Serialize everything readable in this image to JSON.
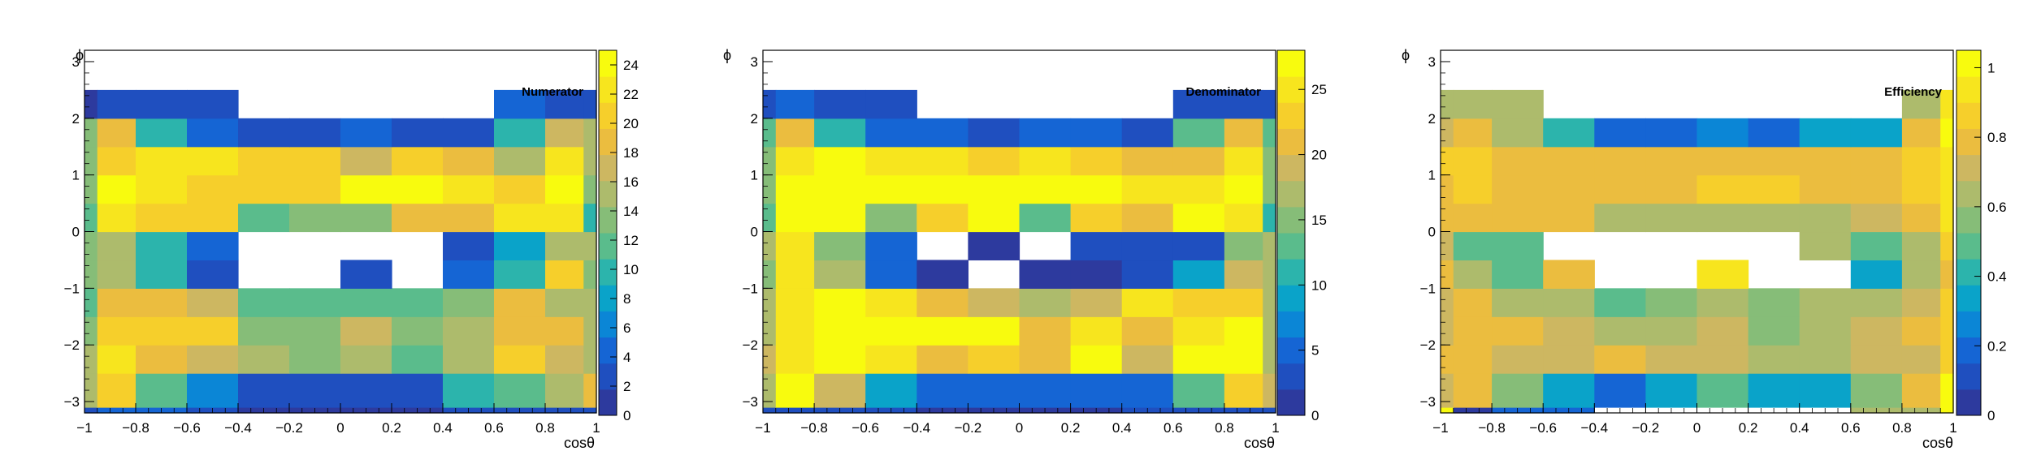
{
  "colors": {
    "palette": [
      "#2d3a9e",
      "#1f4fbf",
      "#1565d4",
      "#0b86d6",
      "#0aa3c9",
      "#2cb4ac",
      "#5abc8c",
      "#86bd78",
      "#adbb6c",
      "#cdb761",
      "#ebbd3f",
      "#f6cf2b",
      "#f7e51e",
      "#f8fb0e"
    ],
    "empty": "#ffffff",
    "frame": "#000000"
  },
  "chart_data": [
    {
      "type": "heatmap",
      "title": "Numerator",
      "xlabel": "cosθ",
      "ylabel": "ϕ",
      "xlim": [
        -1,
        1
      ],
      "ylim": [
        -3.2,
        3.2
      ],
      "zlim": [
        0,
        25
      ],
      "x_edges": [
        -1,
        -0.95,
        -0.8,
        -0.6,
        -0.4,
        -0.2,
        0,
        0.2,
        0.4,
        0.6,
        0.8,
        0.95,
        1
      ],
      "y_edges": [
        -3.2,
        -3.1,
        -2.5,
        -2.0,
        -1.5,
        -1.0,
        -0.5,
        0,
        0.5,
        1.0,
        1.5,
        2.0,
        2.5,
        3.0,
        3.2
      ],
      "x_ticks": [
        "−1",
        "−0.8",
        "−0.6",
        "−0.4",
        "−0.2",
        "0",
        "0.2",
        "0.4",
        "0.6",
        "0.8",
        "1"
      ],
      "y_ticks": [
        "−3",
        "−2",
        "−1",
        "0",
        "1",
        "2",
        "3"
      ],
      "z_ticks": [
        "0",
        "2",
        "4",
        "6",
        "8",
        "10",
        "12",
        "14",
        "16",
        "18",
        "20",
        "22",
        "24"
      ],
      "z_tick_values": [
        0,
        2,
        4,
        6,
        8,
        10,
        12,
        14,
        16,
        18,
        20,
        22,
        24
      ],
      "z": [
        [
          2,
          4,
          4,
          2,
          1,
          1,
          1,
          1,
          2,
          2,
          2,
          2
        ],
        [
          15,
          20,
          12,
          6,
          2,
          2,
          2,
          2,
          9,
          12,
          16,
          18
        ],
        [
          16,
          22,
          18,
          17,
          16,
          14,
          16,
          12,
          15,
          20,
          17,
          16
        ],
        [
          14,
          20,
          21,
          20,
          14,
          14,
          17,
          13,
          15,
          18,
          19,
          16
        ],
        [
          12,
          19,
          18,
          17,
          11,
          11,
          11,
          11,
          13,
          19,
          15,
          15
        ],
        [
          14,
          16,
          9,
          3,
          null,
          null,
          2,
          null,
          4,
          9,
          20,
          13
        ],
        [
          14,
          16,
          9,
          4,
          null,
          null,
          null,
          null,
          3,
          8,
          16,
          15
        ],
        [
          11,
          23,
          21,
          20,
          11,
          14,
          14,
          18,
          19,
          23,
          23,
          10
        ],
        [
          14,
          24,
          23,
          21,
          20,
          21,
          24,
          24,
          23,
          20,
          24,
          14
        ],
        [
          14,
          21,
          22,
          23,
          20,
          20,
          17,
          21,
          18,
          16,
          22,
          16
        ],
        [
          14,
          18,
          10,
          5,
          2,
          2,
          5,
          2,
          2,
          10,
          17,
          15
        ],
        [
          1,
          2,
          2,
          3,
          null,
          null,
          null,
          null,
          null,
          4,
          2,
          2
        ]
      ]
    },
    {
      "type": "heatmap",
      "title": "Denominator",
      "xlabel": "cosθ",
      "ylabel": "ϕ",
      "xlim": [
        -1,
        1
      ],
      "ylim": [
        -3.2,
        3.2
      ],
      "zlim": [
        0,
        28
      ],
      "x_edges": [
        -1,
        -0.95,
        -0.8,
        -0.6,
        -0.4,
        -0.2,
        0,
        0.2,
        0.4,
        0.6,
        0.8,
        0.95,
        1
      ],
      "y_edges": [
        -3.2,
        -3.1,
        -2.5,
        -2.0,
        -1.5,
        -1.0,
        -0.5,
        0,
        0.5,
        1.0,
        1.5,
        2.0,
        2.5,
        3.0,
        3.2
      ],
      "x_ticks": [
        "−1",
        "−0.8",
        "−0.6",
        "−0.4",
        "−0.2",
        "0",
        "0.2",
        "0.4",
        "0.6",
        "0.8",
        "1"
      ],
      "y_ticks": [
        "−3",
        "−2",
        "−1",
        "0",
        "1",
        "2",
        "3"
      ],
      "z_ticks": [
        "0",
        "5",
        "10",
        "15",
        "20",
        "25"
      ],
      "z_tick_values": [
        0,
        5,
        10,
        15,
        20,
        25
      ],
      "z": [
        [
          2,
          2,
          2,
          2,
          1,
          1,
          1,
          1,
          2,
          2,
          2,
          2
        ],
        [
          17,
          28,
          18,
          8,
          4,
          4,
          4,
          4,
          4,
          13,
          22,
          18
        ],
        [
          19,
          24,
          26,
          24,
          20,
          22,
          20,
          28,
          18,
          26,
          28,
          17
        ],
        [
          17,
          24,
          28,
          28,
          26,
          26,
          20,
          24,
          21,
          24,
          28,
          16
        ],
        [
          16,
          24,
          27,
          24,
          20,
          19,
          17,
          18,
          24,
          23,
          22,
          17
        ],
        [
          15,
          25,
          17,
          5,
          1,
          null,
          1,
          1,
          2,
          8,
          19,
          16
        ],
        [
          16,
          24,
          14,
          5,
          null,
          1,
          null,
          2,
          2,
          2,
          15,
          17
        ],
        [
          13,
          28,
          26,
          14,
          22,
          26,
          12,
          22,
          21,
          27,
          25,
          11
        ],
        [
          15,
          26,
          26,
          26,
          26,
          28,
          26,
          26,
          24,
          24,
          26,
          15
        ],
        [
          15,
          24,
          27,
          24,
          25,
          22,
          24,
          23,
          21,
          21,
          24,
          15
        ],
        [
          13,
          20,
          11,
          5,
          4,
          2,
          4,
          4,
          3,
          12,
          21,
          13
        ],
        [
          2,
          4,
          3,
          3,
          null,
          null,
          null,
          null,
          null,
          3,
          3,
          3
        ]
      ]
    },
    {
      "type": "heatmap",
      "title": "Efficiency",
      "xlabel": "cosθ",
      "ylabel": "ϕ",
      "xlim": [
        -1,
        1
      ],
      "ylim": [
        -3.2,
        3.2
      ],
      "zlim": [
        0,
        1.05
      ],
      "x_edges": [
        -1,
        -0.95,
        -0.8,
        -0.6,
        -0.4,
        -0.2,
        0,
        0.2,
        0.4,
        0.6,
        0.8,
        0.95,
        1
      ],
      "y_edges": [
        -3.2,
        -3.1,
        -2.5,
        -2.0,
        -1.5,
        -1.0,
        -0.5,
        0,
        0.5,
        1.0,
        1.5,
        2.0,
        2.5,
        3.0,
        3.2
      ],
      "x_ticks": [
        "−1",
        "−0.8",
        "−0.6",
        "−0.4",
        "−0.2",
        "0",
        "0.2",
        "0.4",
        "0.6",
        "0.8",
        "1"
      ],
      "y_ticks": [
        "−3",
        "−2",
        "−1",
        "0",
        "1",
        "2",
        "3"
      ],
      "z_ticks": [
        "0",
        "0.2",
        "0.4",
        "0.6",
        "0.8",
        "1"
      ],
      "z_tick_values": [
        0,
        0.2,
        0.4,
        0.6,
        0.8,
        1
      ],
      "z": [
        [
          1.0,
          0.05,
          0.15,
          0.2,
          null,
          null,
          null,
          null,
          null,
          0.6,
          0.6,
          1.0
        ],
        [
          0.7,
          0.75,
          0.55,
          0.3,
          0.2,
          0.3,
          0.5,
          0.3,
          0.3,
          0.55,
          0.75,
          1.0
        ],
        [
          0.75,
          0.75,
          0.7,
          0.7,
          0.75,
          0.7,
          0.7,
          0.6,
          0.65,
          0.7,
          0.7,
          0.85
        ],
        [
          0.7,
          0.8,
          0.75,
          0.7,
          0.6,
          0.65,
          0.7,
          0.55,
          0.65,
          0.7,
          0.75,
          0.85
        ],
        [
          0.7,
          0.75,
          0.65,
          0.65,
          0.5,
          0.55,
          0.6,
          0.55,
          0.6,
          0.65,
          0.7,
          0.85
        ],
        [
          0.8,
          0.65,
          0.45,
          0.75,
          null,
          null,
          0.95,
          null,
          null,
          0.35,
          0.65,
          0.8
        ],
        [
          0.7,
          0.5,
          0.5,
          null,
          null,
          null,
          null,
          null,
          0.65,
          0.45,
          0.6,
          0.85
        ],
        [
          0.75,
          0.75,
          0.75,
          0.75,
          0.6,
          0.6,
          0.6,
          0.65,
          0.6,
          0.7,
          0.75,
          0.9
        ],
        [
          0.8,
          0.85,
          0.8,
          0.8,
          0.8,
          0.8,
          0.85,
          0.85,
          0.8,
          0.8,
          0.85,
          0.9
        ],
        [
          0.85,
          0.85,
          0.8,
          0.8,
          0.8,
          0.8,
          0.8,
          0.8,
          0.8,
          0.8,
          0.85,
          0.9
        ],
        [
          0.7,
          0.75,
          0.6,
          0.4,
          0.2,
          0.2,
          0.25,
          0.2,
          0.3,
          0.35,
          0.75,
          1.0
        ],
        [
          0.6,
          0.6,
          0.6,
          null,
          null,
          null,
          null,
          null,
          null,
          null,
          0.6,
          0.9
        ]
      ]
    }
  ]
}
